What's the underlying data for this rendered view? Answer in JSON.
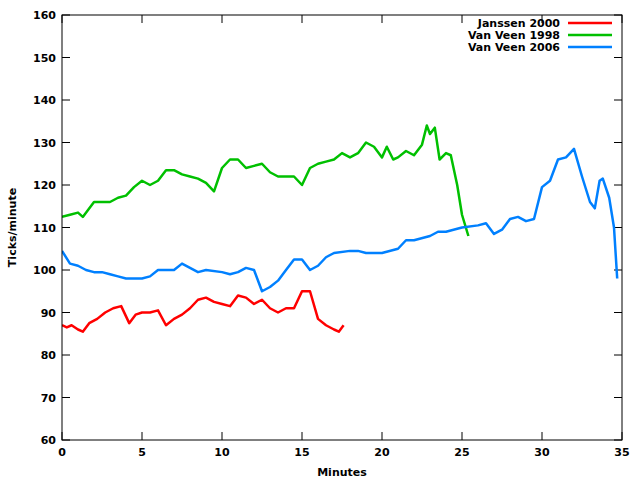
{
  "chart_data": {
    "type": "line",
    "x_label": "Minutes",
    "y_label": "Ticks/minute",
    "xlim": [
      0,
      35
    ],
    "xticks": [
      0,
      5,
      10,
      15,
      20,
      25,
      30,
      35
    ],
    "ylim": [
      60,
      160
    ],
    "yticks": [
      60,
      70,
      80,
      90,
      100,
      110,
      120,
      130,
      140,
      150,
      160
    ],
    "grid": false,
    "legend": "top right",
    "series": [
      {
        "name": "Janssen 2000",
        "color": "#ff0000",
        "x": [
          0,
          0.3,
          0.6,
          1,
          1.3,
          1.7,
          2.2,
          2.7,
          3.2,
          3.7,
          4.2,
          4.6,
          5,
          5.5,
          6,
          6.5,
          7,
          7.5,
          8,
          8.5,
          9,
          9.5,
          10,
          10.5,
          11,
          11.5,
          12,
          12.5,
          13,
          13.5,
          14,
          14.5,
          15,
          15.5,
          16,
          16.5,
          17,
          17.3,
          17.6
        ],
        "values": [
          87,
          86.5,
          87,
          86,
          85.5,
          87.5,
          88.5,
          90,
          91,
          91.5,
          87.5,
          89.5,
          90,
          90,
          90.5,
          87,
          88.5,
          89.5,
          91,
          93,
          93.5,
          92.5,
          92,
          91.5,
          94,
          93.5,
          92,
          93,
          91,
          90,
          91,
          91,
          95,
          95,
          88.5,
          87,
          86,
          85.5,
          87
        ]
      },
      {
        "name": "Van Veen 1998",
        "color": "#00c000",
        "x": [
          0,
          0.5,
          1,
          1.3,
          2,
          3,
          3.5,
          4,
          4.5,
          5,
          5.5,
          6,
          6.5,
          7,
          7.5,
          8,
          8.5,
          9,
          9.5,
          10,
          10.5,
          11,
          11.5,
          12,
          12.5,
          13,
          13.5,
          14,
          14.5,
          15,
          15.5,
          16,
          16.5,
          17,
          17.5,
          18,
          18.5,
          19,
          19.5,
          20,
          20.3,
          20.7,
          21,
          21.5,
          22,
          22.5,
          22.8,
          23,
          23.3,
          23.6,
          24,
          24.3,
          24.7,
          25,
          25.4
        ],
        "values": [
          112.5,
          113,
          113.5,
          112.5,
          116,
          116,
          117,
          117.5,
          119.5,
          121,
          120,
          121,
          123.5,
          123.5,
          122.5,
          122,
          121.5,
          120.5,
          118.5,
          124,
          126,
          126,
          124,
          124.5,
          125,
          123,
          122,
          122,
          122,
          120,
          124,
          125,
          125.5,
          126,
          127.5,
          126.5,
          127.5,
          130,
          129,
          126.5,
          129,
          126,
          126.5,
          128,
          127,
          129.5,
          134,
          132,
          133.5,
          126,
          127.5,
          127,
          120,
          113,
          108
        ]
      },
      {
        "name": "Van Veen 2006",
        "color": "#0080ff",
        "x": [
          0,
          0.5,
          1,
          1.5,
          2,
          2.5,
          3,
          3.5,
          4,
          5,
          5.5,
          6,
          7,
          7.5,
          8,
          8.5,
          9,
          10,
          10.5,
          11,
          11.5,
          12,
          12.5,
          13,
          13.5,
          14,
          14.5,
          15,
          15.5,
          16,
          16.5,
          17,
          18,
          18.5,
          19,
          20,
          21,
          21.5,
          22,
          23,
          23.5,
          24,
          25,
          26,
          26.5,
          27,
          27.5,
          28,
          28.5,
          29,
          29.5,
          30,
          30.5,
          31,
          31.5,
          32,
          32.5,
          33,
          33.3,
          33.6,
          33.8,
          34.2,
          34.5,
          34.7
        ],
        "values": [
          104.5,
          101.5,
          101,
          100,
          99.5,
          99.5,
          99,
          98.5,
          98,
          98,
          98.5,
          100,
          100,
          101.5,
          100.5,
          99.5,
          100,
          99.5,
          99,
          99.5,
          100.5,
          100,
          95,
          96,
          97.5,
          100,
          102.5,
          102.5,
          100,
          101,
          103,
          104,
          104.5,
          104.5,
          104,
          104,
          105,
          107,
          107,
          108,
          109,
          109,
          110,
          110.5,
          111,
          108.5,
          109.5,
          112,
          112.5,
          111.5,
          112,
          119.5,
          121,
          126,
          126.5,
          128.5,
          122,
          116,
          114.5,
          121,
          121.5,
          117,
          110,
          98
        ]
      }
    ]
  }
}
